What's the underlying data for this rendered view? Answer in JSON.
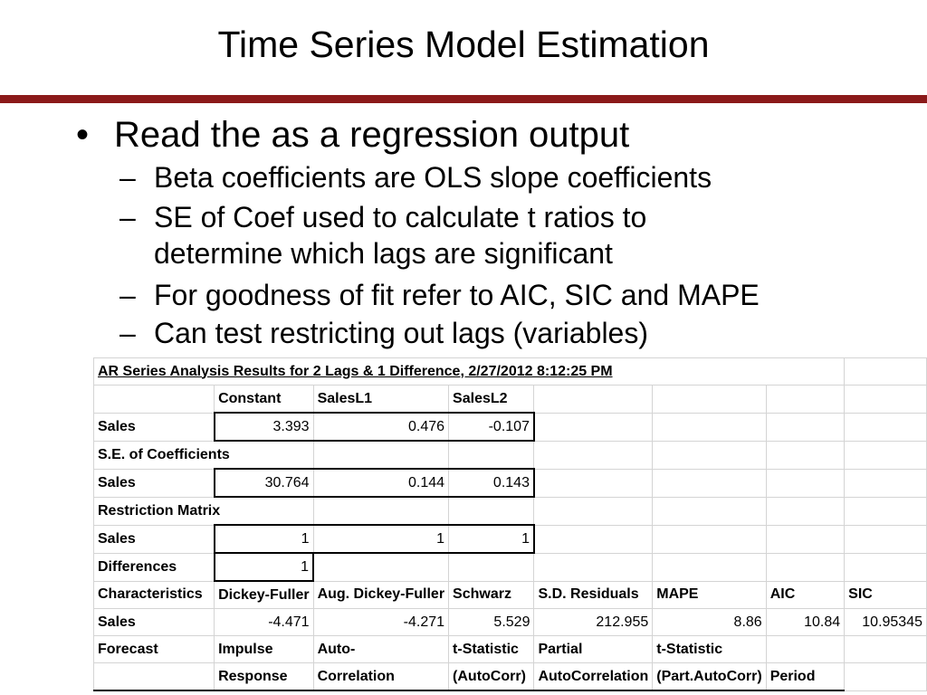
{
  "slide": {
    "title": "Time Series Model Estimation",
    "rule_color": "#8b1a1a"
  },
  "bullets": {
    "main_mark": "•",
    "sub_mark": "–",
    "main": "Read the as a regression output",
    "sub": [
      "Beta coefficients are OLS slope coefficients",
      "SE of Coef used to calculate t ratios to",
      "For goodness of fit refer to AIC, SIC and MAPE",
      "Can test restricting out lags (variables)"
    ],
    "sub_continuation": "determine which lags are significant"
  },
  "table": {
    "title": "AR Series Analysis Results for 2 Lags & 1 Difference, 2/27/2012 8:12:25 PM",
    "coef_headers": [
      "Constant",
      "SalesL1",
      "SalesL2"
    ],
    "rows": {
      "sales_label": "Sales",
      "se_label": "S.E. of Coefficients",
      "restriction_label": "Restriction Matrix",
      "differences_label": "Differences",
      "characteristics_label": "Characteristics",
      "forecast_label": "Forecast"
    },
    "coefficients": [
      "3.393",
      "0.476",
      "-0.107"
    ],
    "standard_errors": [
      "30.764",
      "0.144",
      "0.143"
    ],
    "restriction": [
      "1",
      "1",
      "1"
    ],
    "differences": "1",
    "char_headers": [
      "Dickey-Fuller",
      "Aug. Dickey-Fuller",
      "Schwarz",
      "S.D. Residuals",
      "MAPE",
      "AIC",
      "SIC"
    ],
    "char_values": [
      "-4.471",
      "-4.271",
      "5.529",
      "212.955",
      "8.86",
      "10.84",
      "10.95345"
    ],
    "forecast_headers_1": [
      "Impulse",
      "Auto-",
      "t-Statistic",
      "Partial",
      "t-Statistic"
    ],
    "forecast_headers_2": [
      "Response",
      "Correlation",
      "(AutoCorr)",
      "AutoCorrelation",
      "(Part.AutoCorr)",
      "Period"
    ]
  }
}
